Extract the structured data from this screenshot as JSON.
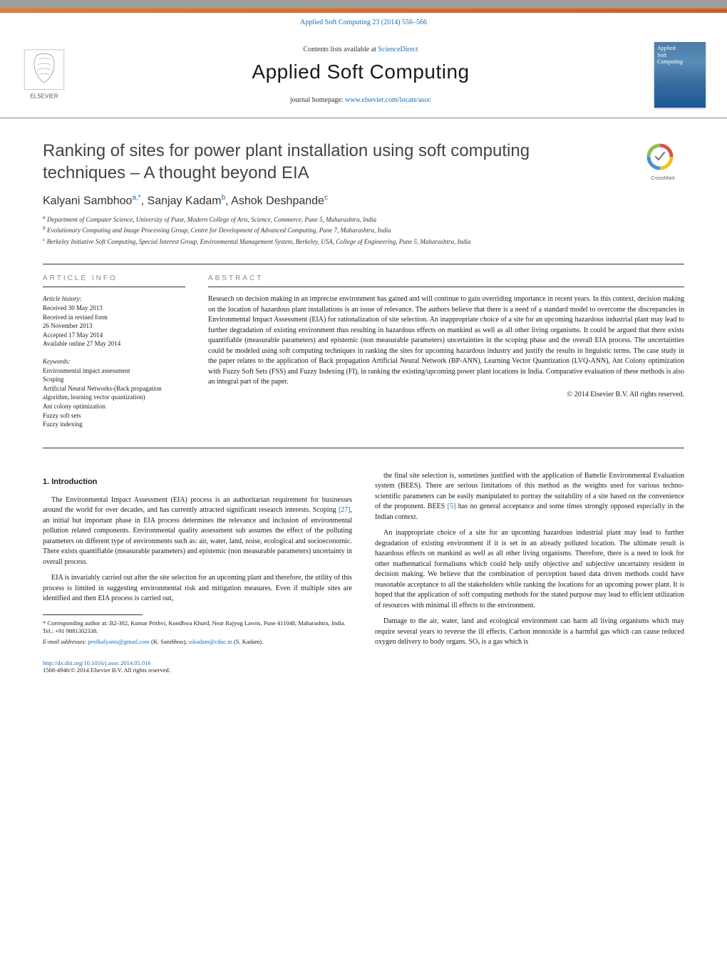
{
  "colors": {
    "link": "#1a6db3",
    "header_grey": "#9e9e9e",
    "header_orange_start": "#e57a2e",
    "header_orange_end": "#d45a1a",
    "cover_gradient": [
      "#4d7ba8",
      "#5a8cb8",
      "#3a6fa0",
      "#1a5a95"
    ],
    "title_grey": "#444444"
  },
  "typography": {
    "body_family": "Georgia, 'Times New Roman', serif",
    "heading_family": "Arial, sans-serif",
    "journal_name_size_pt": 21,
    "article_title_size_pt": 18,
    "authors_size_pt": 12,
    "body_size_pt": 7.5,
    "abstract_size_pt": 7.5,
    "footnote_size_pt": 6.5
  },
  "citation": {
    "text_prefix": "Applied Soft Computing 23 (2014) 556–566"
  },
  "masthead": {
    "contents_prefix": "Contents lists available at ",
    "contents_link": "ScienceDirect",
    "journal": "Applied Soft Computing",
    "homepage_prefix": "journal homepage: ",
    "homepage_link": "www.elsevier.com/locate/asoc",
    "publisher_name": "ELSEVIER",
    "cover_text": "Applied\nSoft\nComputing"
  },
  "title": "Ranking of sites for power plant installation using soft computing techniques – A thought beyond EIA",
  "crossmark_label": "CrossMark",
  "authors_html": "Kalyani Sambhoo<sup data-name='affil-ref' data-interactable='false'>a,*</sup>, Sanjay Kadam<sup data-name='affil-ref' data-interactable='false'>b</sup>, Ashok Deshpande<sup data-name='affil-ref' data-interactable='false'>c</sup>",
  "affiliations": [
    "a Department of Computer Science, University of Pune, Modern College of Arts, Science, Commerce, Pune 5, Maharashtra, India",
    "b Evolutionary Computing and Image Processing Group, Centre for Development of Advanced Computing, Pune 7, Maharashtra, India",
    "c Berkeley Initiative Soft Computing, Special Interest Group, Environmental Management System, Berkeley, USA, College of Engineering, Pune 5, Maharashtra, India"
  ],
  "article_info": {
    "head": "ARTICLE INFO",
    "history_label": "Article history:",
    "history": [
      "Received 30 May 2013",
      "Received in revised form",
      "26 November 2013",
      "Accepted 17 May 2014",
      "Available online 27 May 2014"
    ],
    "keywords_label": "Keywords:",
    "keywords": [
      "Environmental impact assessment",
      "Scoping",
      "Artificial Neural Networks-(Back propagation algorithm, learning vector quantization)",
      "Ant colony optimization",
      "Fuzzy soft sets",
      "Fuzzy indexing"
    ]
  },
  "abstract": {
    "head": "ABSTRACT",
    "text": "Research on decision making in an imprecise environment has gained and will continue to gain overriding importance in recent years. In this context, decision making on the location of hazardous plant installations is an issue of relevance. The authors believe that there is a need of a standard model to overcome the discrepancies in Environmental Impact Assessment (EIA) for rationalization of site selection. An inappropriate choice of a site for an upcoming hazardous industrial plant may lead to further degradation of existing environment thus resulting in hazardous effects on mankind as well as all other living organisms. It could be argued that there exists quantifiable (measurable parameters) and epistemic (non measurable parameters) uncertainties in the scoping phase and the overall EIA process. The uncertainties could be modeled using soft computing techniques in ranking the sites for upcoming hazardous industry and justify the results in linguistic terms. The case study in the paper relates to the application of Back propagation Artificial Neural Network (BP-ANN), Learning Vector Quantization (LVQ-ANN), Ant Colony optimization with Fuzzy Soft Sets (FSS) and Fuzzy Indexing (FI), in ranking the existing/upcoming power plant locations in India. Comparative evaluation of these methods is also an integral part of the paper.",
    "copyright": "© 2014 Elsevier B.V. All rights reserved."
  },
  "intro": {
    "heading": "1. Introduction",
    "left_paras": [
      "The Environmental Impact Assessment (EIA) process is an authoritarian requirement for businesses around the world for over decades, and has currently attracted significant research interests. Scoping <span class='cite' data-name='cite-link' data-interactable='true'>[27]</span>, an initial but important phase in EIA process determines the relevance and inclusion of environmental pollution related components. Environmental quality assessment sub assumes the effect of the polluting parameters on different type of environments such as: air, water, land, noise, ecological and socioeconomic. There exists quantifiable (measurable parameters) and epistemic (non measurable parameters) uncertainty in overall process.",
      "EIA is invariably carried out after the site selection for an upcoming plant and therefore, the utility of this process is limited in suggesting environmental risk and mitigation measures. Even if multiple sites are identified and then EIA process is carried out,"
    ],
    "right_paras": [
      "the final site selection is, sometimes justified with the application of Battelle Environmental Evaluation system (BEES). There are serious limitations of this method as the weights used for various techno-scientific parameters can be easily manipulated to portray the suitability of a site based on the convenience of the proponent. BEES <span class='cite' data-name='cite-link' data-interactable='true'>[5]</span> has no general acceptance and some times strongly opposed especially in the Indian context.",
      "An inappropriate choice of a site for an upcoming hazardous industrial plant may lead to further degradation of existing environment if it is set in an already polluted location. The ultimate result is hazardous effects on mankind as well as all other living organisms. Therefore, there is a need to look for other mathematical formalisms which could help unify objective and subjective uncertainty resident in decision making. We believe that the combination of perception based data driven methods could have reasonable acceptance to all the stakeholders while ranking the locations for an upcoming power plant. It is hoped that the application of soft computing methods for the stated purpose may lead to efficient utilization of resources with minimal ill effects to the environment.",
      "Damage to the air, water, land and ecological environment can harm all living organisms which may require several years to reverse the ill effects. Carbon monoxide is a harmful gas which can cause reduced oxygen delivery to body organs. SOₓ is a gas which is"
    ]
  },
  "footnotes": {
    "corr_label": "* Corresponding author at: B2-302, Kumar Prithvi, Kondhwa Khurd, Near Rajyog Lawns, Pune 411048, Maharashtra, India. Tel.: +91 9881302338.",
    "email_label": "E-mail addresses: ",
    "emails": [
      {
        "addr": "profkalyanis@gmail.com",
        "who": "(K. Sambhoo),"
      },
      {
        "addr": "sskadam@cdac.in",
        "who": "(S. Kadam)."
      }
    ]
  },
  "footer": {
    "doi": "http://dx.doi.org/10.1016/j.asoc.2014.05.016",
    "issn_copy": "1568-4946/© 2014 Elsevier B.V. All rights reserved."
  }
}
